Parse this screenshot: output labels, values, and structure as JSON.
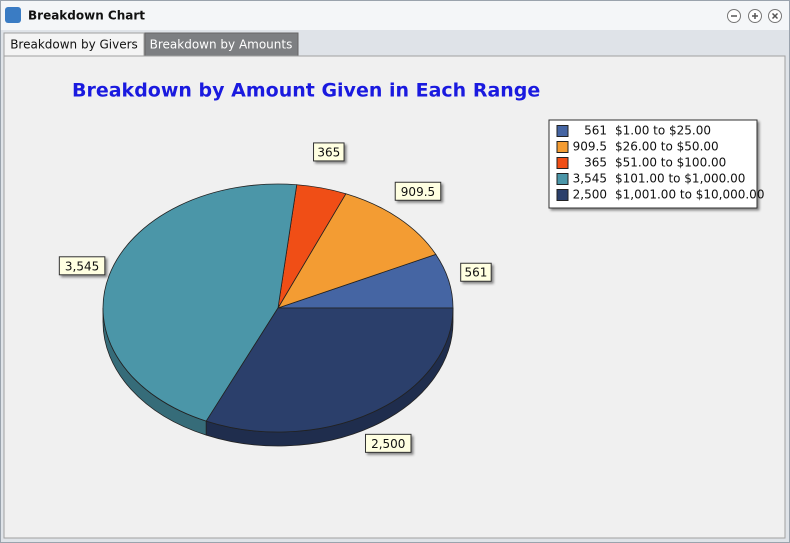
{
  "window": {
    "title": "Breakdown Chart"
  },
  "tabs": [
    "Breakdown by Givers",
    "Breakdown by Amounts"
  ],
  "chart_data": {
    "type": "pie",
    "title": "Breakdown by Amount Given in Each Range",
    "categories": [
      "$1.00 to $25.00",
      "$26.00 to $50.00",
      "$51.00 to $100.00",
      "$101.00 to $1,000.00",
      "$1,001.00 to $10,000.00"
    ],
    "values": [
      561,
      909.5,
      365,
      3545,
      2500
    ],
    "value_labels": [
      "561",
      "909.5",
      "365",
      "3,545",
      "2,500"
    ],
    "colors": [
      "#4565a3",
      "#f39c33",
      "#f04e16",
      "#4b96a8",
      "#2b3f6b"
    ]
  }
}
